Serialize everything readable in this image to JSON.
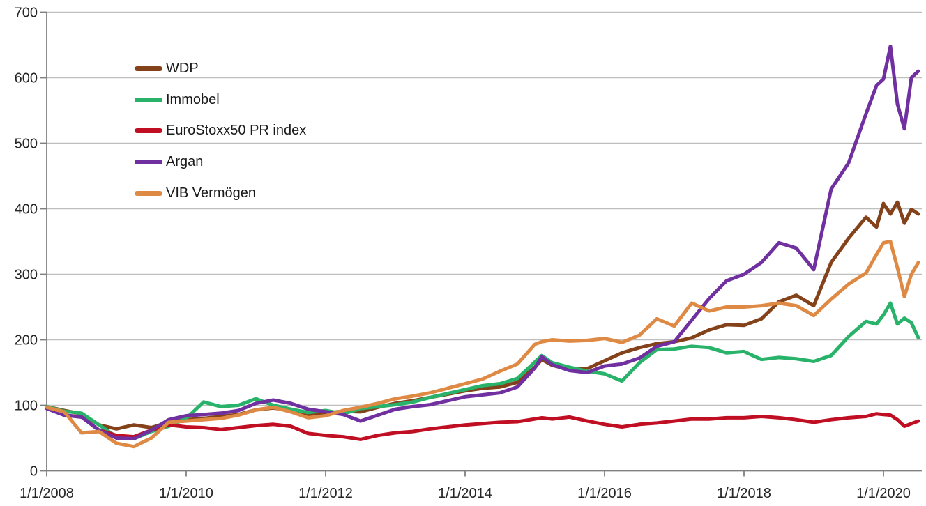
{
  "colors": {
    "background": "#FFFFFF",
    "grid": "#BFBFBF",
    "axis": "#808080",
    "tick_text": "#262626"
  },
  "chart_data": {
    "type": "line",
    "title": "",
    "xlabel": "",
    "ylabel": "",
    "grid": "horizontal",
    "legend_position": "top-left-inside",
    "ylim": [
      0,
      700
    ],
    "xlim": [
      2008,
      2020.6
    ],
    "y_ticks": [
      0,
      100,
      200,
      300,
      400,
      500,
      600,
      700
    ],
    "x_tick_years": [
      2008,
      2010,
      2012,
      2014,
      2016,
      2018,
      2020
    ],
    "x_tick_labels": [
      "1/1/2008",
      "1/1/2010",
      "1/1/2012",
      "1/1/2014",
      "1/1/2016",
      "1/1/2018",
      "1/1/2020"
    ],
    "x_years": [
      2008,
      2008.25,
      2008.5,
      2008.75,
      2009,
      2009.25,
      2009.5,
      2009.75,
      2010,
      2010.25,
      2010.5,
      2010.75,
      2011,
      2011.25,
      2011.5,
      2011.75,
      2012,
      2012.25,
      2012.5,
      2012.75,
      2013,
      2013.25,
      2013.5,
      2013.75,
      2014,
      2014.25,
      2014.5,
      2014.75,
      2015,
      2015.1,
      2015.25,
      2015.5,
      2015.75,
      2016,
      2016.25,
      2016.5,
      2016.75,
      2017,
      2017.25,
      2017.5,
      2017.75,
      2018,
      2018.25,
      2018.5,
      2018.75,
      2019,
      2019.25,
      2019.5,
      2019.75,
      2019.9,
      2020,
      2020.1,
      2020.2,
      2020.3,
      2020.4,
      2020.5
    ],
    "series": [
      {
        "name": "WDP",
        "color": "#84421A",
        "values": [
          98,
          92,
          87,
          70,
          64,
          70,
          66,
          74,
          78,
          80,
          83,
          86,
          93,
          96,
          92,
          84,
          88,
          91,
          90,
          97,
          103,
          107,
          112,
          117,
          122,
          126,
          128,
          135,
          158,
          170,
          161,
          155,
          156,
          168,
          180,
          188,
          194,
          197,
          203,
          215,
          223,
          222,
          232,
          258,
          268,
          252,
          318,
          355,
          387,
          372,
          408,
          392,
          410,
          378,
          399,
          392
        ]
      },
      {
        "name": "Immobel",
        "color": "#29B36A",
        "values": [
          98,
          91,
          88,
          70,
          52,
          49,
          60,
          68,
          80,
          105,
          98,
          100,
          110,
          100,
          94,
          89,
          92,
          87,
          95,
          98,
          101,
          105,
          112,
          118,
          124,
          130,
          133,
          141,
          166,
          176,
          165,
          158,
          152,
          148,
          137,
          165,
          185,
          186,
          190,
          188,
          180,
          182,
          170,
          173,
          171,
          167,
          176,
          205,
          228,
          224,
          238,
          256,
          224,
          233,
          226,
          203
        ]
      },
      {
        "name": "EuroStoxx50 PR index",
        "color": "#C00E23",
        "values": [
          97,
          85,
          82,
          62,
          54,
          52,
          62,
          70,
          67,
          66,
          63,
          66,
          69,
          71,
          68,
          57,
          54,
          52,
          48,
          54,
          58,
          60,
          64,
          67,
          70,
          72,
          74,
          75,
          79,
          81,
          79,
          82,
          76,
          71,
          67,
          71,
          73,
          76,
          79,
          79,
          81,
          81,
          83,
          81,
          78,
          74,
          78,
          81,
          83,
          87,
          86,
          85,
          78,
          68,
          72,
          76
        ]
      },
      {
        "name": "Argan",
        "color": "#7030A0",
        "values": [
          95,
          85,
          82,
          62,
          50,
          49,
          62,
          78,
          84,
          86,
          88,
          92,
          103,
          108,
          103,
          94,
          90,
          86,
          76,
          85,
          94,
          98,
          101,
          107,
          113,
          116,
          119,
          128,
          157,
          174,
          162,
          153,
          150,
          160,
          163,
          172,
          190,
          197,
          230,
          263,
          290,
          300,
          318,
          348,
          340,
          307,
          430,
          470,
          545,
          588,
          598,
          648,
          560,
          522,
          600,
          610
        ]
      },
      {
        "name": "VIB Vermögen",
        "color": "#DF8A44",
        "values": [
          97,
          90,
          58,
          60,
          42,
          37,
          50,
          74,
          76,
          78,
          80,
          85,
          93,
          97,
          90,
          81,
          84,
          92,
          97,
          103,
          110,
          114,
          119,
          126,
          133,
          140,
          152,
          163,
          193,
          197,
          200,
          198,
          199,
          202,
          196,
          207,
          232,
          221,
          256,
          244,
          250,
          250,
          252,
          256,
          252,
          237,
          262,
          285,
          302,
          330,
          348,
          350,
          310,
          266,
          300,
          318
        ]
      }
    ]
  }
}
